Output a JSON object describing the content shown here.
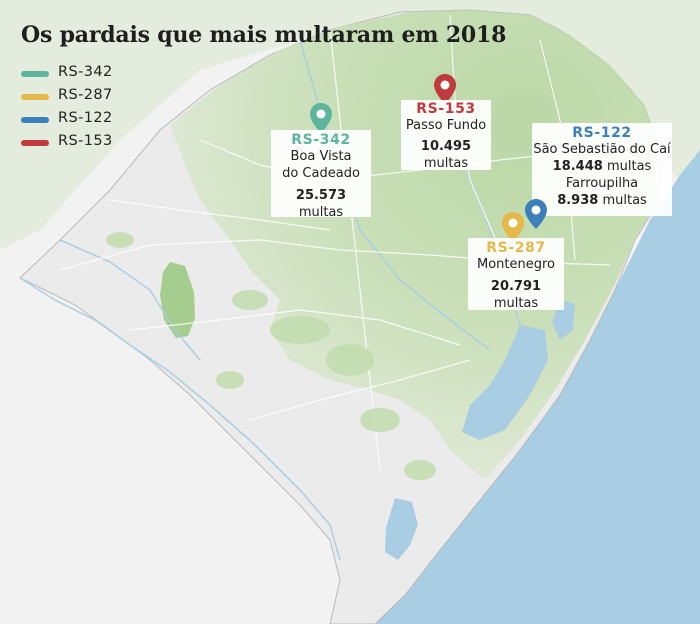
{
  "title": "Os pardais que mais multaram em 2018",
  "colors": {
    "rs342": "#5db59c",
    "rs287": "#e6b84a",
    "rs122": "#3d7fb8",
    "rs153": "#c0393c",
    "land": "#ececec",
    "vegetation": "#b9d7a3",
    "water": "#a9cde3"
  },
  "legend": [
    {
      "label": "RS-342",
      "color": "#5db59c"
    },
    {
      "label": "RS-287",
      "color": "#e6b84a"
    },
    {
      "label": "RS-122",
      "color": "#3d7fb8"
    },
    {
      "label": "RS-153",
      "color": "#c0393c"
    }
  ],
  "markers": {
    "rs342": {
      "route": "RS-342",
      "place_line1": "Boa Vista",
      "place_line2": "do Cadeado",
      "count": "25.573",
      "unit": "multas",
      "icon": "map-pin-icon"
    },
    "rs153": {
      "route": "RS-153",
      "place": "Passo Fundo",
      "count": "10.495",
      "unit": "multas",
      "icon": "map-pin-icon"
    },
    "rs122": {
      "route": "RS-122",
      "place1": "São Sebastião do Caí",
      "count1": "18.448",
      "unit1": "multas",
      "place2": "Farroupilha",
      "count2": "8.938",
      "unit2": "multas",
      "icon": "map-pin-icon"
    },
    "rs287": {
      "route": "RS-287",
      "place": "Montenegro",
      "count": "20.791",
      "unit": "multas",
      "icon": "map-pin-icon"
    }
  }
}
